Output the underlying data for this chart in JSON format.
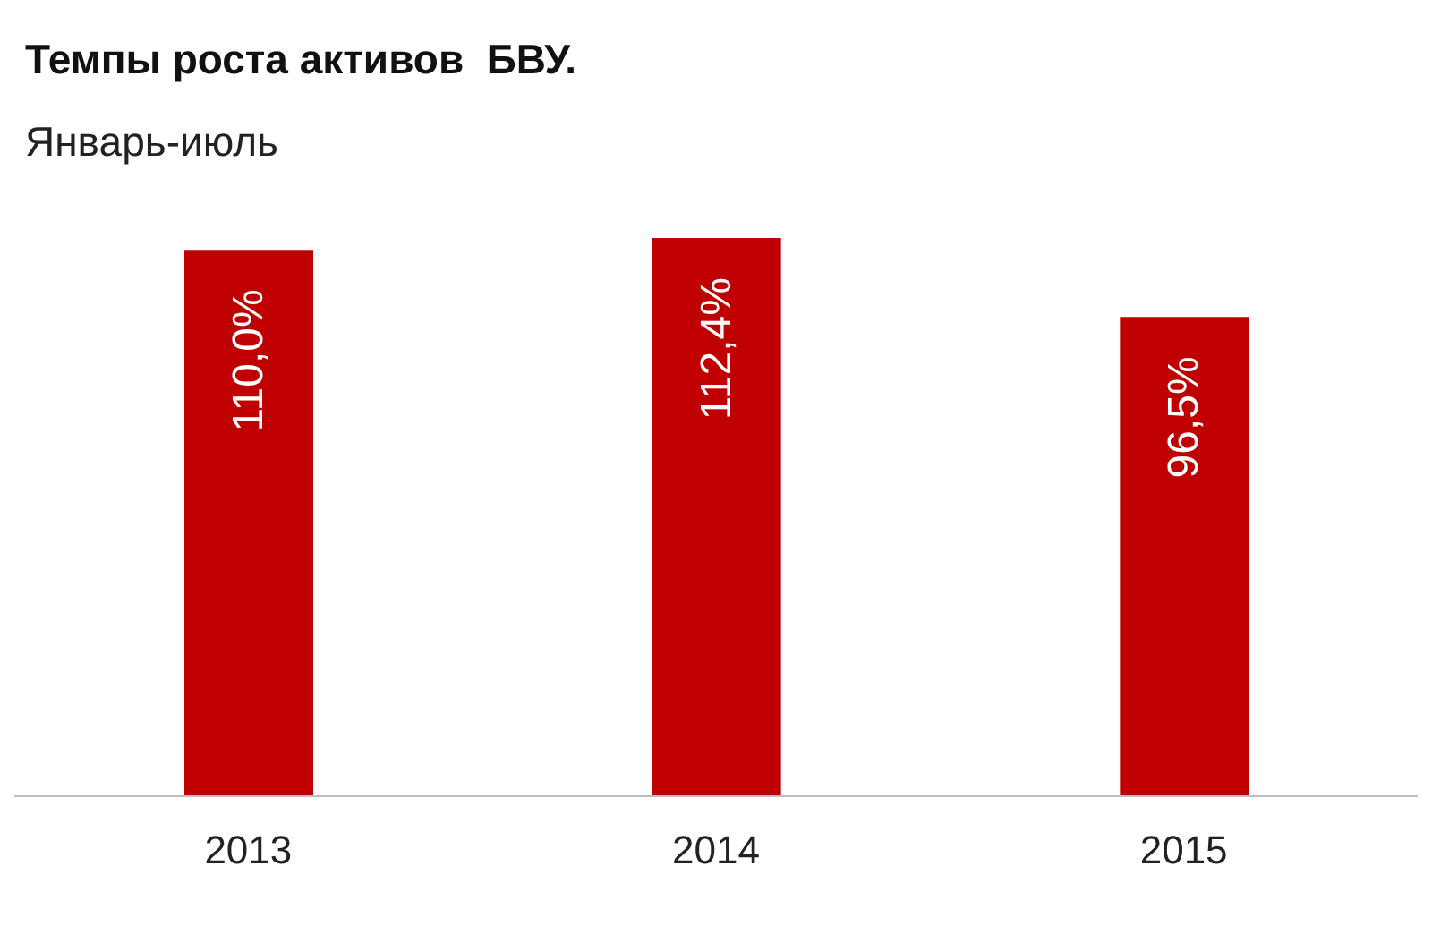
{
  "chart_data": {
    "type": "bar",
    "title": "Темпы роста активов  БВУ.",
    "subtitle": "Январь-июль",
    "categories": [
      "2013",
      "2014",
      "2015"
    ],
    "values": [
      110.0,
      112.4,
      96.5
    ],
    "value_labels": [
      "110,0%",
      "112,4%",
      "96,5%"
    ],
    "color": "#c00000",
    "tick_labels": "x"
  }
}
